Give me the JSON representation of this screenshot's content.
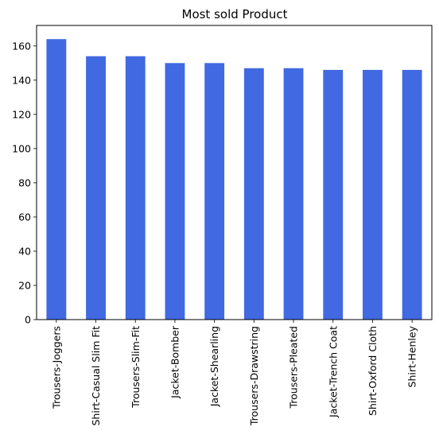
{
  "chart_data": {
    "type": "bar",
    "title": "Most sold Product",
    "xlabel": "",
    "ylabel": "",
    "categories": [
      "Trousers-Joggers",
      "Shirt-Casual Slim Fit",
      "Trousers-Slim-Fit",
      "Jacket-Bomber",
      "Jacket-Shearling",
      "Trousers-Drawstring",
      "Trousers-Pleated",
      "Jacket-Trench Coat",
      "Shirt-Oxford Cloth",
      "Shirt-Henley"
    ],
    "values": [
      164,
      154,
      154,
      150,
      150,
      147,
      147,
      146,
      146,
      146
    ],
    "ylim": [
      0,
      172
    ],
    "yticks": [
      0,
      20,
      40,
      60,
      80,
      100,
      120,
      140,
      160
    ],
    "bar_color": "#4169E1",
    "grid": false,
    "legend": "none"
  }
}
